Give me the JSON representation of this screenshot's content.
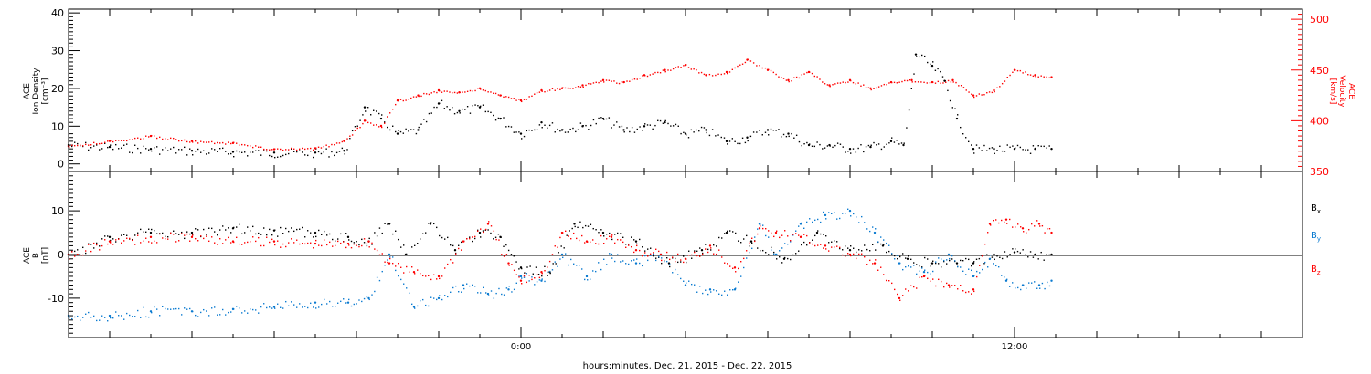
{
  "figure": {
    "footer": "hours:minutes, Dec. 21, 2015 - Dec. 22, 2015",
    "x_ticks": [
      {
        "hour": 0,
        "label": "0:00"
      },
      {
        "hour": 12,
        "label": "12:00"
      }
    ],
    "x_range_hours": [
      -11,
      19
    ]
  },
  "colors": {
    "black": "#000000",
    "red": "#ff0000",
    "blue": "#0a7ad0"
  },
  "chart_data": [
    {
      "type": "scatter",
      "title": "",
      "ylabel_lines": [
        "ACE",
        "Ion Density",
        "[cm⁻³]"
      ],
      "ylim": [
        -2,
        41
      ],
      "yticks": [
        0,
        10,
        20,
        30,
        40
      ],
      "ytick_labels": [
        "0",
        "10",
        "20",
        "30",
        "40"
      ],
      "right_axis": {
        "ylabel_lines": [
          "ACE",
          "Velocity",
          "[km/s]"
        ],
        "ylim": [
          350,
          510
        ],
        "yticks": [
          350,
          400,
          450,
          500
        ],
        "ytick_labels": [
          "350",
          "400",
          "450",
          "500"
        ],
        "color": "#ff0000"
      },
      "series": [
        {
          "key": "density",
          "color": "#000000",
          "axis": "left",
          "x": [
            -11,
            -10,
            -9,
            -8,
            -7,
            -6,
            -5,
            -4.3,
            -3.8,
            -3.4,
            -3,
            -2.5,
            -2,
            -1.5,
            -1,
            -0.5,
            0,
            0.5,
            1,
            1.5,
            2,
            2.5,
            3,
            3.5,
            4,
            4.5,
            5,
            5.5,
            6,
            6.5,
            7,
            7.5,
            8,
            8.5,
            9,
            9.3,
            9.6,
            10,
            10.3,
            10.6,
            11,
            11.5,
            12,
            12.5,
            12.9
          ],
          "y": [
            5,
            4.5,
            4,
            3.5,
            3.2,
            3,
            3,
            3.5,
            15,
            12,
            8,
            9,
            16,
            14,
            15,
            12,
            8,
            11,
            9,
            10,
            12,
            9,
            10,
            11,
            8,
            9,
            6,
            7,
            9,
            8,
            5,
            5,
            4,
            4.5,
            6,
            5,
            29,
            26,
            22,
            12,
            4,
            4,
            4,
            4,
            4
          ]
        },
        {
          "key": "velocity",
          "color": "#ff0000",
          "axis": "right",
          "x": [
            -11,
            -10,
            -9,
            -8,
            -7,
            -6,
            -5,
            -4.3,
            -3.8,
            -3.4,
            -3,
            -2.5,
            -2,
            -1.5,
            -1,
            -0.5,
            0,
            0.5,
            1,
            1.5,
            2,
            2.5,
            3,
            3.5,
            4,
            4.5,
            5,
            5.5,
            6,
            6.5,
            7,
            7.5,
            8,
            8.5,
            9,
            9.5,
            10,
            10.5,
            11,
            11.5,
            12,
            12.5,
            12.9
          ],
          "y": [
            375,
            380,
            385,
            380,
            378,
            372,
            373,
            380,
            400,
            395,
            420,
            425,
            430,
            428,
            432,
            425,
            420,
            430,
            432,
            435,
            440,
            438,
            445,
            450,
            455,
            445,
            448,
            460,
            450,
            440,
            448,
            435,
            440,
            432,
            438,
            440,
            438,
            440,
            425,
            430,
            450,
            445,
            443
          ]
        }
      ]
    },
    {
      "type": "scatter",
      "title": "",
      "ylabel_lines": [
        "ACE",
        "B",
        "[nT]"
      ],
      "ylim": [
        -19,
        19
      ],
      "yticks": [
        -10,
        0,
        10
      ],
      "ytick_labels": [
        "-10",
        "0",
        "10"
      ],
      "zero_line": true,
      "legend": [
        {
          "label": "B",
          "sub": "x",
          "color": "#000000"
        },
        {
          "label": "B",
          "sub": "y",
          "color": "#0a7ad0"
        },
        {
          "label": "B",
          "sub": "z",
          "color": "#ff0000"
        }
      ],
      "series": [
        {
          "key": "bx",
          "color": "#000000",
          "x": [
            -11,
            -10,
            -9,
            -8,
            -7,
            -6,
            -5,
            -4.2,
            -3.7,
            -3.2,
            -2.8,
            -2.2,
            -1.6,
            -1,
            -0.5,
            0,
            0.7,
            1.3,
            2,
            2.8,
            3.6,
            4.4,
            5,
            5.6,
            6.4,
            7.2,
            8,
            8.8,
            9.4,
            10,
            10.6,
            11,
            11.5,
            12,
            12.5,
            12.9
          ],
          "y": [
            0,
            4,
            5,
            5,
            6,
            5.5,
            5,
            4,
            3,
            7,
            0,
            7,
            1,
            5,
            4,
            -3,
            -4,
            7,
            5,
            3,
            -2,
            1,
            5,
            3,
            -1,
            5,
            1,
            2,
            -1,
            -2,
            -2,
            -2,
            0,
            0.5,
            0,
            0
          ]
        },
        {
          "key": "by",
          "color": "#0a7ad0",
          "x": [
            -11,
            -10,
            -9,
            -8,
            -7,
            -6,
            -5,
            -4.2,
            -3.7,
            -3.2,
            -2.6,
            -2,
            -1.4,
            -0.8,
            -0.3,
            0,
            0.5,
            1,
            1.6,
            2.2,
            2.8,
            3.4,
            4,
            4.6,
            5.2,
            5.8,
            6.2,
            6.8,
            7.4,
            8,
            8.6,
            9.2,
            9.8,
            10.4,
            11,
            11.4,
            11.8,
            12.2,
            12.6,
            12.9
          ],
          "y": [
            -14,
            -14,
            -13,
            -13,
            -12.5,
            -12,
            -11,
            -11,
            -10,
            0,
            -12,
            -10,
            -7,
            -9,
            -8,
            -5,
            -6,
            0,
            -5,
            0,
            -2,
            0,
            -7,
            -8,
            -8,
            7,
            0,
            7,
            9,
            10,
            5,
            -2,
            -4,
            0,
            -5,
            -1,
            -6,
            -7,
            -7,
            -6
          ]
        },
        {
          "key": "bz",
          "color": "#ff0000",
          "x": [
            -11,
            -10,
            -9,
            -8,
            -7,
            -6,
            -5,
            -4.2,
            -3.7,
            -3.2,
            -2.6,
            -2,
            -1.4,
            -0.8,
            -0.3,
            0,
            0.5,
            1,
            1.6,
            2.2,
            2.8,
            3.4,
            4,
            4.6,
            5.2,
            5.8,
            6.2,
            6.8,
            7.4,
            8,
            8.6,
            9.2,
            9.8,
            10.4,
            11,
            11.4,
            11.8,
            12.2,
            12.6,
            12.9
          ],
          "y": [
            0,
            3,
            4,
            4,
            3,
            3,
            2.5,
            2.5,
            3,
            -2,
            -4,
            -5,
            3,
            7,
            -2,
            -6,
            -4,
            5,
            3,
            4,
            1,
            0,
            -1,
            2,
            -3,
            6,
            5,
            4,
            2,
            0,
            -2,
            -10,
            -5,
            -7,
            -8,
            7,
            8,
            6,
            7,
            5
          ]
        }
      ]
    }
  ]
}
